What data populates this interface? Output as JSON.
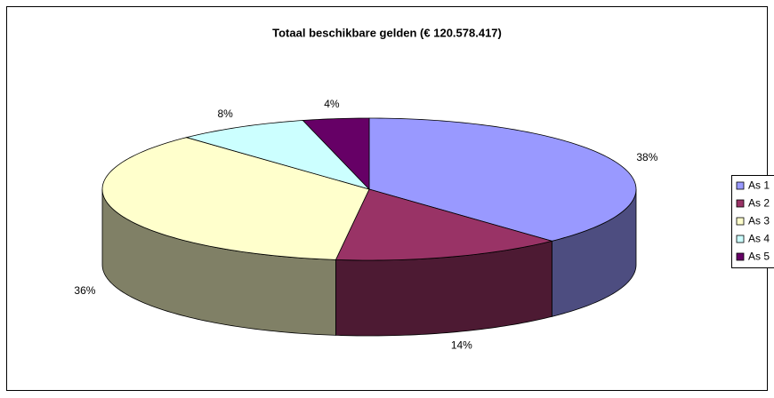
{
  "chart_data": {
    "type": "pie3d",
    "title": "Totaal beschikbare gelden (€ 120.578.417)",
    "categories": [
      "As 1",
      "As 2",
      "As 3",
      "As 4",
      "As 5"
    ],
    "values": [
      38,
      14,
      36,
      8,
      4
    ],
    "value_labels": [
      "38%",
      "14%",
      "36%",
      "8%",
      "4%"
    ],
    "colors": [
      "#9999ff",
      "#993366",
      "#ffffcc",
      "#ccffff",
      "#660066"
    ],
    "legend": "right"
  }
}
